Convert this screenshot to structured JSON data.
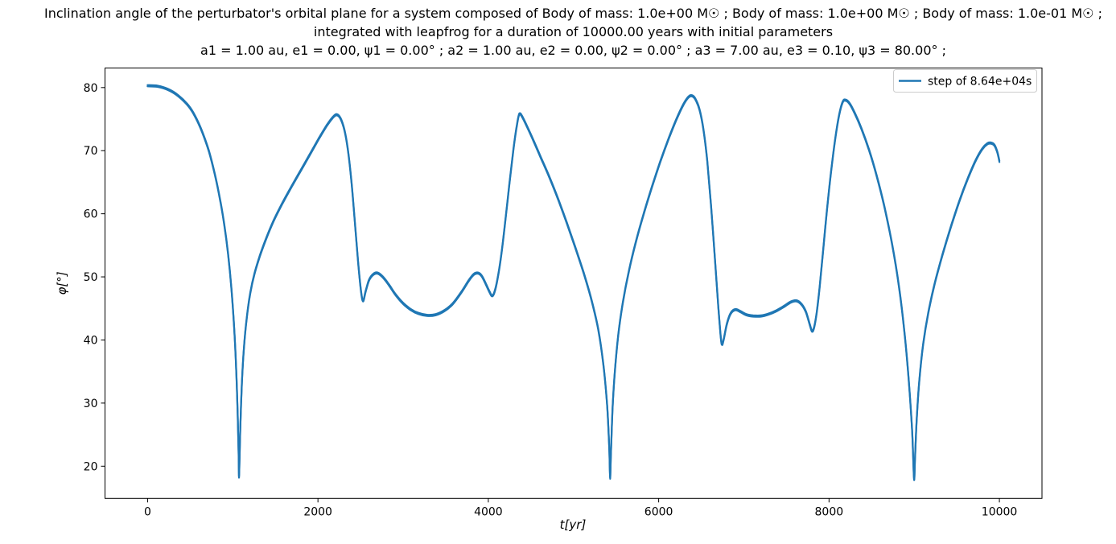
{
  "chart_data": {
    "type": "line",
    "title_lines": [
      "Inclination angle of the perturbator's orbital plane for a system composed of Body of mass: 1.0e+00 M☉ ; Body of mass: 1.0e+00 M☉ ; Body of mass: 1.0e-01 M☉ ;",
      "integrated with leapfrog for a duration of 10000.00 years with initial parameters",
      "a1 = 1.00 au, e1 = 0.00, ψ1 = 0.00° ; a2 = 1.00 au, e2 = 0.00, ψ2 = 0.00° ; a3 = 7.00 au, e3 = 0.10, ψ3 = 80.00° ;"
    ],
    "xlabel": "t[yr]",
    "ylabel": "φ[°]",
    "xlim": [
      -500,
      10500
    ],
    "ylim": [
      14.9,
      83.1
    ],
    "xticks": [
      0,
      2000,
      4000,
      6000,
      8000,
      10000
    ],
    "yticks": [
      20,
      30,
      40,
      50,
      60,
      70,
      80
    ],
    "grid": false,
    "legend": {
      "position": "upper right",
      "entries": [
        "step of 8.64e+04s"
      ]
    },
    "series": [
      {
        "name": "step of 8.64e+04s",
        "color": "#1f77b4",
        "points": [
          [
            0,
            80.3
          ],
          [
            120,
            80.2
          ],
          [
            240,
            79.7
          ],
          [
            360,
            78.7
          ],
          [
            480,
            77.1
          ],
          [
            560,
            75.4
          ],
          [
            640,
            73.0
          ],
          [
            720,
            69.9
          ],
          [
            790,
            66.2
          ],
          [
            850,
            62.3
          ],
          [
            900,
            58.3
          ],
          [
            945,
            53.6
          ],
          [
            985,
            48.0
          ],
          [
            1015,
            42.2
          ],
          [
            1040,
            35.4
          ],
          [
            1058,
            28.2
          ],
          [
            1068,
            22.3
          ],
          [
            1073,
            18.3
          ],
          [
            1079,
            21.0
          ],
          [
            1090,
            26.6
          ],
          [
            1106,
            32.8
          ],
          [
            1130,
            38.6
          ],
          [
            1165,
            43.6
          ],
          [
            1205,
            47.4
          ],
          [
            1255,
            50.5
          ],
          [
            1315,
            53.2
          ],
          [
            1390,
            56.0
          ],
          [
            1480,
            58.9
          ],
          [
            1580,
            61.6
          ],
          [
            1690,
            64.3
          ],
          [
            1800,
            66.9
          ],
          [
            1910,
            69.5
          ],
          [
            2010,
            71.9
          ],
          [
            2100,
            73.9
          ],
          [
            2170,
            75.2
          ],
          [
            2220,
            75.7
          ],
          [
            2265,
            75.1
          ],
          [
            2310,
            73.3
          ],
          [
            2350,
            70.3
          ],
          [
            2390,
            65.6
          ],
          [
            2430,
            59.2
          ],
          [
            2470,
            52.6
          ],
          [
            2505,
            47.8
          ],
          [
            2530,
            46.2
          ],
          [
            2560,
            47.7
          ],
          [
            2600,
            49.5
          ],
          [
            2650,
            50.4
          ],
          [
            2700,
            50.6
          ],
          [
            2760,
            50.0
          ],
          [
            2830,
            48.8
          ],
          [
            2910,
            47.2
          ],
          [
            3000,
            45.8
          ],
          [
            3090,
            44.8
          ],
          [
            3180,
            44.2
          ],
          [
            3280,
            43.9
          ],
          [
            3380,
            44.0
          ],
          [
            3480,
            44.6
          ],
          [
            3580,
            45.7
          ],
          [
            3680,
            47.5
          ],
          [
            3770,
            49.4
          ],
          [
            3830,
            50.4
          ],
          [
            3880,
            50.6
          ],
          [
            3925,
            50.1
          ],
          [
            3970,
            48.9
          ],
          [
            4015,
            47.6
          ],
          [
            4045,
            47.0
          ],
          [
            4075,
            47.7
          ],
          [
            4110,
            49.8
          ],
          [
            4150,
            53.3
          ],
          [
            4195,
            58.3
          ],
          [
            4245,
            64.4
          ],
          [
            4295,
            70.2
          ],
          [
            4335,
            74.0
          ],
          [
            4365,
            75.8
          ],
          [
            4405,
            75.2
          ],
          [
            4455,
            73.8
          ],
          [
            4530,
            71.6
          ],
          [
            4620,
            68.8
          ],
          [
            4720,
            65.7
          ],
          [
            4820,
            62.3
          ],
          [
            4920,
            58.6
          ],
          [
            5020,
            54.7
          ],
          [
            5120,
            50.6
          ],
          [
            5210,
            46.4
          ],
          [
            5290,
            41.7
          ],
          [
            5350,
            36.2
          ],
          [
            5395,
            29.6
          ],
          [
            5420,
            22.8
          ],
          [
            5430,
            18.1
          ],
          [
            5441,
            22.4
          ],
          [
            5458,
            28.9
          ],
          [
            5485,
            34.9
          ],
          [
            5525,
            40.7
          ],
          [
            5580,
            46.0
          ],
          [
            5650,
            50.9
          ],
          [
            5730,
            55.4
          ],
          [
            5820,
            59.8
          ],
          [
            5920,
            64.2
          ],
          [
            6020,
            68.3
          ],
          [
            6120,
            72.0
          ],
          [
            6210,
            75.0
          ],
          [
            6290,
            77.3
          ],
          [
            6350,
            78.5
          ],
          [
            6390,
            78.7
          ],
          [
            6430,
            78.2
          ],
          [
            6480,
            76.5
          ],
          [
            6525,
            73.4
          ],
          [
            6570,
            68.4
          ],
          [
            6615,
            61.3
          ],
          [
            6660,
            52.9
          ],
          [
            6700,
            45.3
          ],
          [
            6730,
            40.3
          ],
          [
            6745,
            39.3
          ],
          [
            6765,
            40.2
          ],
          [
            6800,
            42.5
          ],
          [
            6845,
            44.2
          ],
          [
            6900,
            44.8
          ],
          [
            6960,
            44.5
          ],
          [
            7030,
            44.0
          ],
          [
            7110,
            43.8
          ],
          [
            7200,
            43.8
          ],
          [
            7290,
            44.1
          ],
          [
            7380,
            44.6
          ],
          [
            7470,
            45.3
          ],
          [
            7550,
            46.0
          ],
          [
            7620,
            46.2
          ],
          [
            7680,
            45.6
          ],
          [
            7730,
            44.4
          ],
          [
            7775,
            42.4
          ],
          [
            7800,
            41.4
          ],
          [
            7825,
            42.0
          ],
          [
            7855,
            44.3
          ],
          [
            7890,
            48.4
          ],
          [
            7930,
            54.0
          ],
          [
            7975,
            60.5
          ],
          [
            8025,
            66.8
          ],
          [
            8075,
            72.1
          ],
          [
            8120,
            75.7
          ],
          [
            8160,
            77.7
          ],
          [
            8195,
            78.0
          ],
          [
            8240,
            77.5
          ],
          [
            8300,
            76.0
          ],
          [
            8380,
            73.5
          ],
          [
            8470,
            70.1
          ],
          [
            8560,
            66.0
          ],
          [
            8650,
            61.1
          ],
          [
            8740,
            55.2
          ],
          [
            8820,
            48.6
          ],
          [
            8885,
            41.3
          ],
          [
            8935,
            33.8
          ],
          [
            8975,
            25.7
          ],
          [
            8998,
            18.0
          ],
          [
            9010,
            21.5
          ],
          [
            9030,
            27.6
          ],
          [
            9060,
            33.6
          ],
          [
            9105,
            39.3
          ],
          [
            9165,
            44.3
          ],
          [
            9240,
            48.9
          ],
          [
            9330,
            53.4
          ],
          [
            9430,
            57.9
          ],
          [
            9530,
            62.0
          ],
          [
            9630,
            65.6
          ],
          [
            9720,
            68.4
          ],
          [
            9800,
            70.3
          ],
          [
            9860,
            71.1
          ],
          [
            9900,
            71.2
          ],
          [
            9940,
            70.9
          ],
          [
            9970,
            70.0
          ],
          [
            9990,
            69.0
          ],
          [
            10000,
            68.3
          ]
        ]
      }
    ]
  }
}
